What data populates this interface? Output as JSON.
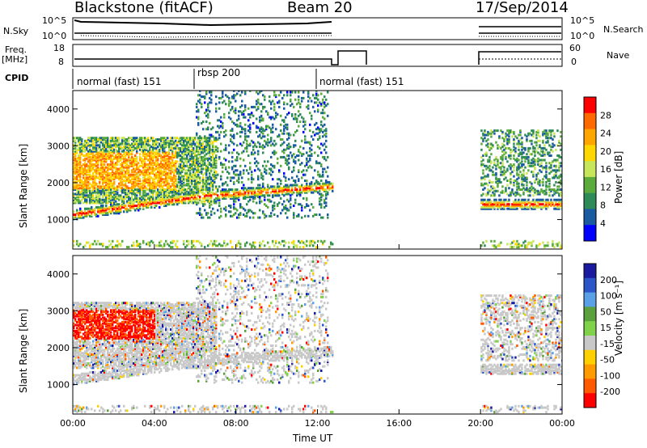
{
  "header": {
    "title": "Blackstone (fitACF)",
    "beam": "Beam 20",
    "date": "17/Sep/2014"
  },
  "left_labels": {
    "nsky": "N.Sky",
    "freq_line1": "Freq.",
    "freq_line2": "[MHz]",
    "cpid": "CPID"
  },
  "right_labels": {
    "nsearch": "N.Search",
    "nave": "Nave"
  },
  "noise_axis": {
    "top_tick": "10^5",
    "bottom_tick": "10^0"
  },
  "freq_axis": {
    "top_tick": "18",
    "bottom_tick": "8"
  },
  "nave_axis": {
    "top_tick": "60",
    "bottom_tick": "0"
  },
  "cpid_segments": [
    {
      "label": "normal (fast) 151",
      "start_h": 0.0,
      "end_h": 6.0
    },
    {
      "label": "rbsp 200",
      "start_h": 6.0,
      "end_h": 12.0
    },
    {
      "label": "normal (fast) 151",
      "start_h": 12.0,
      "end_h": 12.7
    }
  ],
  "chart_data": [
    {
      "type": "heatmap",
      "ylabel": "Slant Range [km]",
      "xlabel": "",
      "ylim": [
        200,
        4500
      ],
      "yticks": [
        "1000",
        "2000",
        "3000",
        "4000"
      ],
      "colorbar_label": "Power [dB]",
      "colorbar_ticks": [
        "28",
        "24",
        "20",
        "16",
        "12",
        "8",
        "4"
      ],
      "colorbar_colors": [
        "#ff0000",
        "#ff6a00",
        "#ffa500",
        "#ffd700",
        "#c8e65a",
        "#5aab3c",
        "#2e8b57",
        "#1a5aa0",
        "#0000ff"
      ]
    },
    {
      "type": "heatmap",
      "ylabel": "Slant Range [km]",
      "xlabel": "Time UT",
      "ylim": [
        200,
        4500
      ],
      "yticks": [
        "1000",
        "2000",
        "3000",
        "4000"
      ],
      "xticks": [
        "00:00",
        "04:00",
        "08:00",
        "12:00",
        "16:00",
        "20:00",
        "00:00"
      ],
      "colorbar_label": "Velocity [m s⁻¹]",
      "colorbar_ticks": [
        "200",
        "100",
        "50",
        "15",
        "-15",
        "-50",
        "-100",
        "-200"
      ],
      "colorbar_colors": [
        "#1a1aa0",
        "#2b55c8",
        "#5aa0e6",
        "#5aa03c",
        "#7fd24a",
        "#c8c8c8",
        "#ffd000",
        "#ff9a00",
        "#ff5a00",
        "#ff0000"
      ]
    }
  ]
}
